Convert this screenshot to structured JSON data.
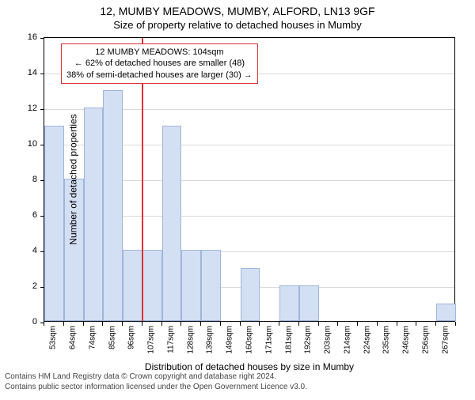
{
  "title": "12, MUMBY MEADOWS, MUMBY, ALFORD, LN13 9GF",
  "subtitle": "Size of property relative to detached houses in Mumby",
  "chart": {
    "type": "histogram",
    "xlabel": "Distribution of detached houses by size in Mumby",
    "ylabel": "Number of detached properties",
    "ylim": [
      0,
      16
    ],
    "ytick_step": 2,
    "bar_color": "#d3dff2",
    "bar_border_color": "#9fb5db",
    "grid_color": "#d9d9d9",
    "background_color": "#ffffff",
    "refline_color": "#e03131",
    "refline_x_index": 5,
    "categories": [
      "53sqm",
      "64sqm",
      "74sqm",
      "85sqm",
      "96sqm",
      "107sqm",
      "117sqm",
      "128sqm",
      "139sqm",
      "149sqm",
      "160sqm",
      "171sqm",
      "181sqm",
      "192sqm",
      "203sqm",
      "214sqm",
      "224sqm",
      "235sqm",
      "246sqm",
      "256sqm",
      "267sqm"
    ],
    "values": [
      11,
      8,
      12,
      13,
      4,
      4,
      11,
      4,
      4,
      0,
      3,
      0,
      2,
      2,
      0,
      0,
      0,
      0,
      0,
      0,
      1
    ]
  },
  "annotation": {
    "line1": "12 MUMBY MEADOWS: 104sqm",
    "line2": "← 62% of detached houses are smaller (48)",
    "line3": "38% of semi-detached houses are larger (30) →",
    "border_color": "#e03131"
  },
  "footer": {
    "line1": "Contains HM Land Registry data © Crown copyright and database right 2024.",
    "line2": "Contains public sector information licensed under the Open Government Licence v3.0."
  }
}
